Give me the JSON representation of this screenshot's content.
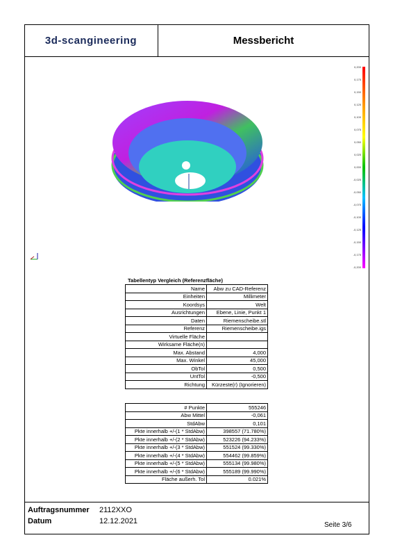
{
  "header": {
    "company": "3d-scangineering",
    "title": "Messbericht"
  },
  "scale": [
    "0,200",
    "0,175",
    "0,150",
    "0,125",
    "0,100",
    "0,075",
    "0,050",
    "0,025",
    "0,000",
    "-0,025",
    "-0,050",
    "-0,075",
    "-0,100",
    "-0,125",
    "-0,150",
    "-0,175",
    "-0,200"
  ],
  "table1": {
    "title": "Tabellentyp   Vergleich (Referenzfläche)",
    "rows": [
      [
        "Name",
        "Abw zu CAD-Referenz"
      ],
      [
        "Einheiten",
        "Millimeter"
      ],
      [
        "Koordsys",
        "Welt"
      ],
      [
        "Ausrichtungen",
        "Ebene, Linie, Punkt 1"
      ],
      [
        "Daten",
        "Riemenscheibe.stl"
      ],
      [
        "Referenz",
        "Riemenscheibe.igs"
      ],
      [
        "Virtuelle Fläche"
      ],
      [
        "Wirksame Fläche(n)"
      ],
      [
        "Max. Abstand",
        "4,000"
      ],
      [
        "Max. Winkel",
        "45,000"
      ],
      [
        "ObTol",
        "0,500"
      ],
      [
        "UntTol",
        "-0,500"
      ],
      [
        "Richtung",
        "Kürzeste(r) (Ignorieren)"
      ]
    ]
  },
  "table2": {
    "rows": [
      [
        "# Punkte",
        "555246"
      ],
      [
        "Abw Mittel",
        "-0,061"
      ],
      [
        "StdAbw",
        "0,101"
      ],
      [
        "Pkte innerhalb +/-(1 * StdAbw)",
        "398557 (71.780%)"
      ],
      [
        "Pkte innerhalb +/-(2 * StdAbw)",
        "523226 (94.233%)"
      ],
      [
        "Pkte innerhalb +/-(3 * StdAbw)",
        "551524 (99.330%)"
      ],
      [
        "Pkte innerhalb +/-(4 * StdAbw)",
        "554462 (99.859%)"
      ],
      [
        "Pkte innerhalb +/-(5 * StdAbw)",
        "555134 (99.980%)"
      ],
      [
        "Pkte innerhalb +/-(6 * StdAbw)",
        "555189 (99.990%)"
      ],
      [
        "Fläche außerh. Tol",
        "0.021%"
      ]
    ]
  },
  "footer": {
    "order_label": "Auftragsnummer",
    "order_number": "2112XXO",
    "date_label": "Datum",
    "date": "12.12.2021",
    "page": "Seite 3/6"
  }
}
